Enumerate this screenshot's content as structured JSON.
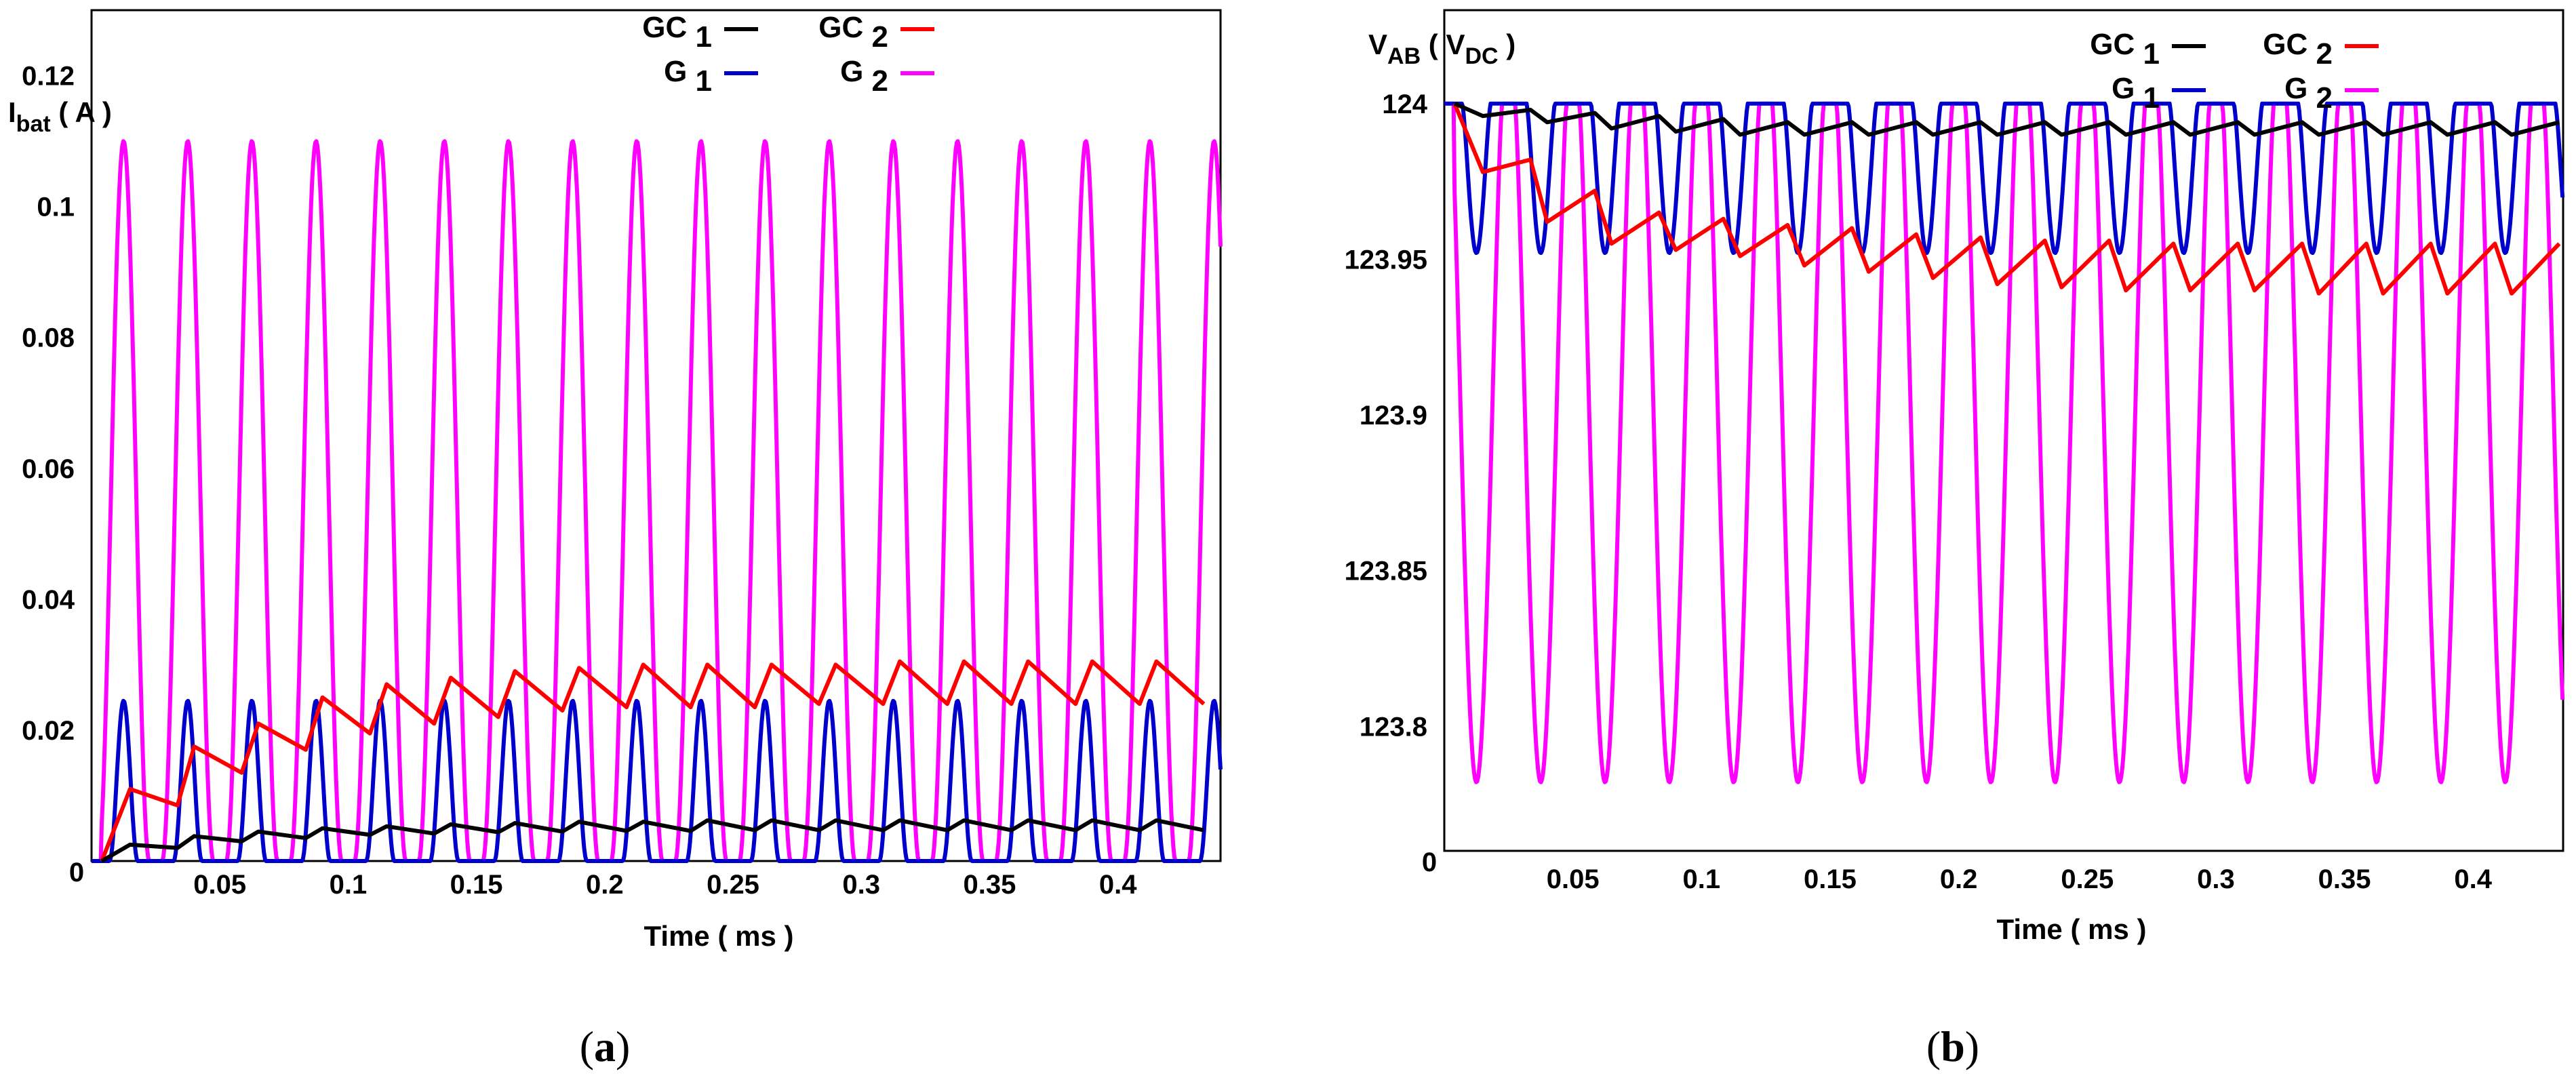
{
  "chart_data": [
    {
      "id": "a",
      "type": "line",
      "caption_letter": "a",
      "ylabel": {
        "main": "I",
        "sub": "bat",
        "rest": " ( A )"
      },
      "xlabel": "Time ( ms )",
      "xlim": [
        0,
        0.44
      ],
      "ylim": [
        0,
        0.13
      ],
      "x_ticks": [
        {
          "v": 0,
          "t": "0"
        },
        {
          "v": 0.05,
          "t": "0.05"
        },
        {
          "v": 0.1,
          "t": "0.1"
        },
        {
          "v": 0.15,
          "t": "0.15"
        },
        {
          "v": 0.2,
          "t": "0.2"
        },
        {
          "v": 0.25,
          "t": "0.25"
        },
        {
          "v": 0.3,
          "t": "0.3"
        },
        {
          "v": 0.35,
          "t": "0.35"
        },
        {
          "v": 0.4,
          "t": "0.4"
        }
      ],
      "y_ticks": [
        {
          "v": 0.02,
          "t": "0.02"
        },
        {
          "v": 0.04,
          "t": "0.04"
        },
        {
          "v": 0.06,
          "t": "0.06"
        },
        {
          "v": 0.08,
          "t": "0.08"
        },
        {
          "v": 0.1,
          "t": "0.1"
        },
        {
          "v": 0.12,
          "t": "0.12"
        }
      ],
      "legend_position": "top-right",
      "legend": [
        {
          "base": "GC",
          "sub": "1",
          "color": "#000000",
          "key": "GC1"
        },
        {
          "base": "GC",
          "sub": "2",
          "color": "#ff0000",
          "key": "GC2"
        },
        {
          "base": "G",
          "sub": "1",
          "color": "#0000cc",
          "key": "G1"
        },
        {
          "base": "G",
          "sub": "2",
          "color": "#ff00ff",
          "key": "G2"
        }
      ],
      "period": 0.025,
      "series": [
        {
          "name": "G2",
          "color": "#ff00ff",
          "kind": "pulse",
          "base": 0,
          "peak": 0.11,
          "first_peak": 0.0125,
          "end": 0.44
        },
        {
          "name": "G1",
          "color": "#0000cc",
          "kind": "pulse-narrow",
          "base": 0,
          "peak": 0.0245,
          "first_peak": 0.0125,
          "end": 0.44
        },
        {
          "name": "GC2",
          "color": "#ff0000",
          "kind": "sawtooth-up",
          "start_x": 0.004,
          "start_y": 0,
          "peaks": [
            0.011,
            0.0175,
            0.021,
            0.025,
            0.027,
            0.028,
            0.029,
            0.0295,
            0.03,
            0.03,
            0.03,
            0.03,
            0.0305,
            0.0305,
            0.0305,
            0.0305,
            0.0305,
            0.0305
          ],
          "troughs": [
            0.0085,
            0.0135,
            0.017,
            0.0195,
            0.021,
            0.022,
            0.023,
            0.0235,
            0.0235,
            0.0235,
            0.024,
            0.024,
            0.024,
            0.024,
            0.024,
            0.024,
            0.024,
            0.024
          ],
          "end": 0.44
        },
        {
          "name": "GC1",
          "color": "#000000",
          "kind": "sawtooth-up",
          "start_x": 0.004,
          "start_y": 0,
          "peaks": [
            0.0025,
            0.0038,
            0.0045,
            0.005,
            0.0053,
            0.0056,
            0.0058,
            0.006,
            0.006,
            0.0062,
            0.0062,
            0.0062,
            0.0062,
            0.0062,
            0.0062,
            0.0062,
            0.0062,
            0.0062
          ],
          "troughs": [
            0.002,
            0.003,
            0.0035,
            0.004,
            0.0042,
            0.0044,
            0.0045,
            0.0046,
            0.0046,
            0.0047,
            0.0047,
            0.0047,
            0.0047,
            0.0047,
            0.0047,
            0.0047,
            0.0047,
            0.0047
          ],
          "end": 0.44
        }
      ]
    },
    {
      "id": "b",
      "type": "line",
      "caption_letter": "b",
      "ylabel": {
        "main": "V",
        "sub": "AB",
        "rest": " ( V",
        "sub2": "DC",
        "rest2": " )"
      },
      "xlabel": "Time ( ms )",
      "xlim": [
        0,
        0.435
      ],
      "ylim": [
        123.76,
        124.03
      ],
      "x_ticks": [
        {
          "v": 0,
          "t": "0"
        },
        {
          "v": 0.05,
          "t": "0.05"
        },
        {
          "v": 0.1,
          "t": "0.1"
        },
        {
          "v": 0.15,
          "t": "0.15"
        },
        {
          "v": 0.2,
          "t": "0.2"
        },
        {
          "v": 0.25,
          "t": "0.25"
        },
        {
          "v": 0.3,
          "t": "0.3"
        },
        {
          "v": 0.35,
          "t": "0.35"
        },
        {
          "v": 0.4,
          "t": "0.4"
        }
      ],
      "y_ticks": [
        {
          "v": 123.8,
          "t": "123.8"
        },
        {
          "v": 123.85,
          "t": "123.85"
        },
        {
          "v": 123.9,
          "t": "123.9"
        },
        {
          "v": 123.95,
          "t": "123.95"
        },
        {
          "v": 124,
          "t": "124"
        }
      ],
      "legend_position": "top-right",
      "legend": [
        {
          "base": "GC",
          "sub": "1",
          "color": "#000000",
          "key": "GC1"
        },
        {
          "base": "GC",
          "sub": "2",
          "color": "#ff0000",
          "key": "GC2"
        },
        {
          "base": "G",
          "sub": "1",
          "color": "#0000cc",
          "key": "G1"
        },
        {
          "base": "G",
          "sub": "2",
          "color": "#ff00ff",
          "key": "G2"
        }
      ],
      "period": 0.025,
      "series": [
        {
          "name": "G2",
          "color": "#ff00ff",
          "kind": "dip",
          "base": 124.0,
          "trough": 123.782,
          "first_trough": 0.0125,
          "end": 0.435
        },
        {
          "name": "G1",
          "color": "#0000cc",
          "kind": "dip-narrow",
          "base": 124.0,
          "trough": 123.952,
          "first_trough": 0.0125,
          "end": 0.435
        },
        {
          "name": "GC2",
          "color": "#ff0000",
          "kind": "sawtooth-down",
          "start_x": 0.004,
          "start_y": 124.0,
          "highs": [
            123.982,
            123.972,
            123.965,
            123.963,
            123.961,
            123.96,
            123.958,
            123.957,
            123.956,
            123.956,
            123.955,
            123.955,
            123.955,
            123.955,
            123.955,
            123.955,
            123.955,
            123.955
          ],
          "lows": [
            123.978,
            123.962,
            123.955,
            123.953,
            123.951,
            123.948,
            123.946,
            123.944,
            123.942,
            123.941,
            123.94,
            123.94,
            123.94,
            123.939,
            123.939,
            123.939,
            123.939,
            123.939
          ],
          "end": 0.435
        },
        {
          "name": "GC1",
          "color": "#000000",
          "kind": "sawtooth-down",
          "start_x": 0.004,
          "start_y": 124.0,
          "highs": [
            123.998,
            123.997,
            123.996,
            123.995,
            123.994,
            123.994,
            123.994,
            123.994,
            123.994,
            123.994,
            123.994,
            123.994,
            123.994,
            123.994,
            123.994,
            123.994,
            123.994,
            123.994
          ],
          "lows": [
            123.996,
            123.994,
            123.992,
            123.991,
            123.99,
            123.99,
            123.99,
            123.99,
            123.99,
            123.99,
            123.99,
            123.99,
            123.99,
            123.99,
            123.99,
            123.99,
            123.99,
            123.99
          ],
          "end": 0.435
        }
      ]
    }
  ]
}
